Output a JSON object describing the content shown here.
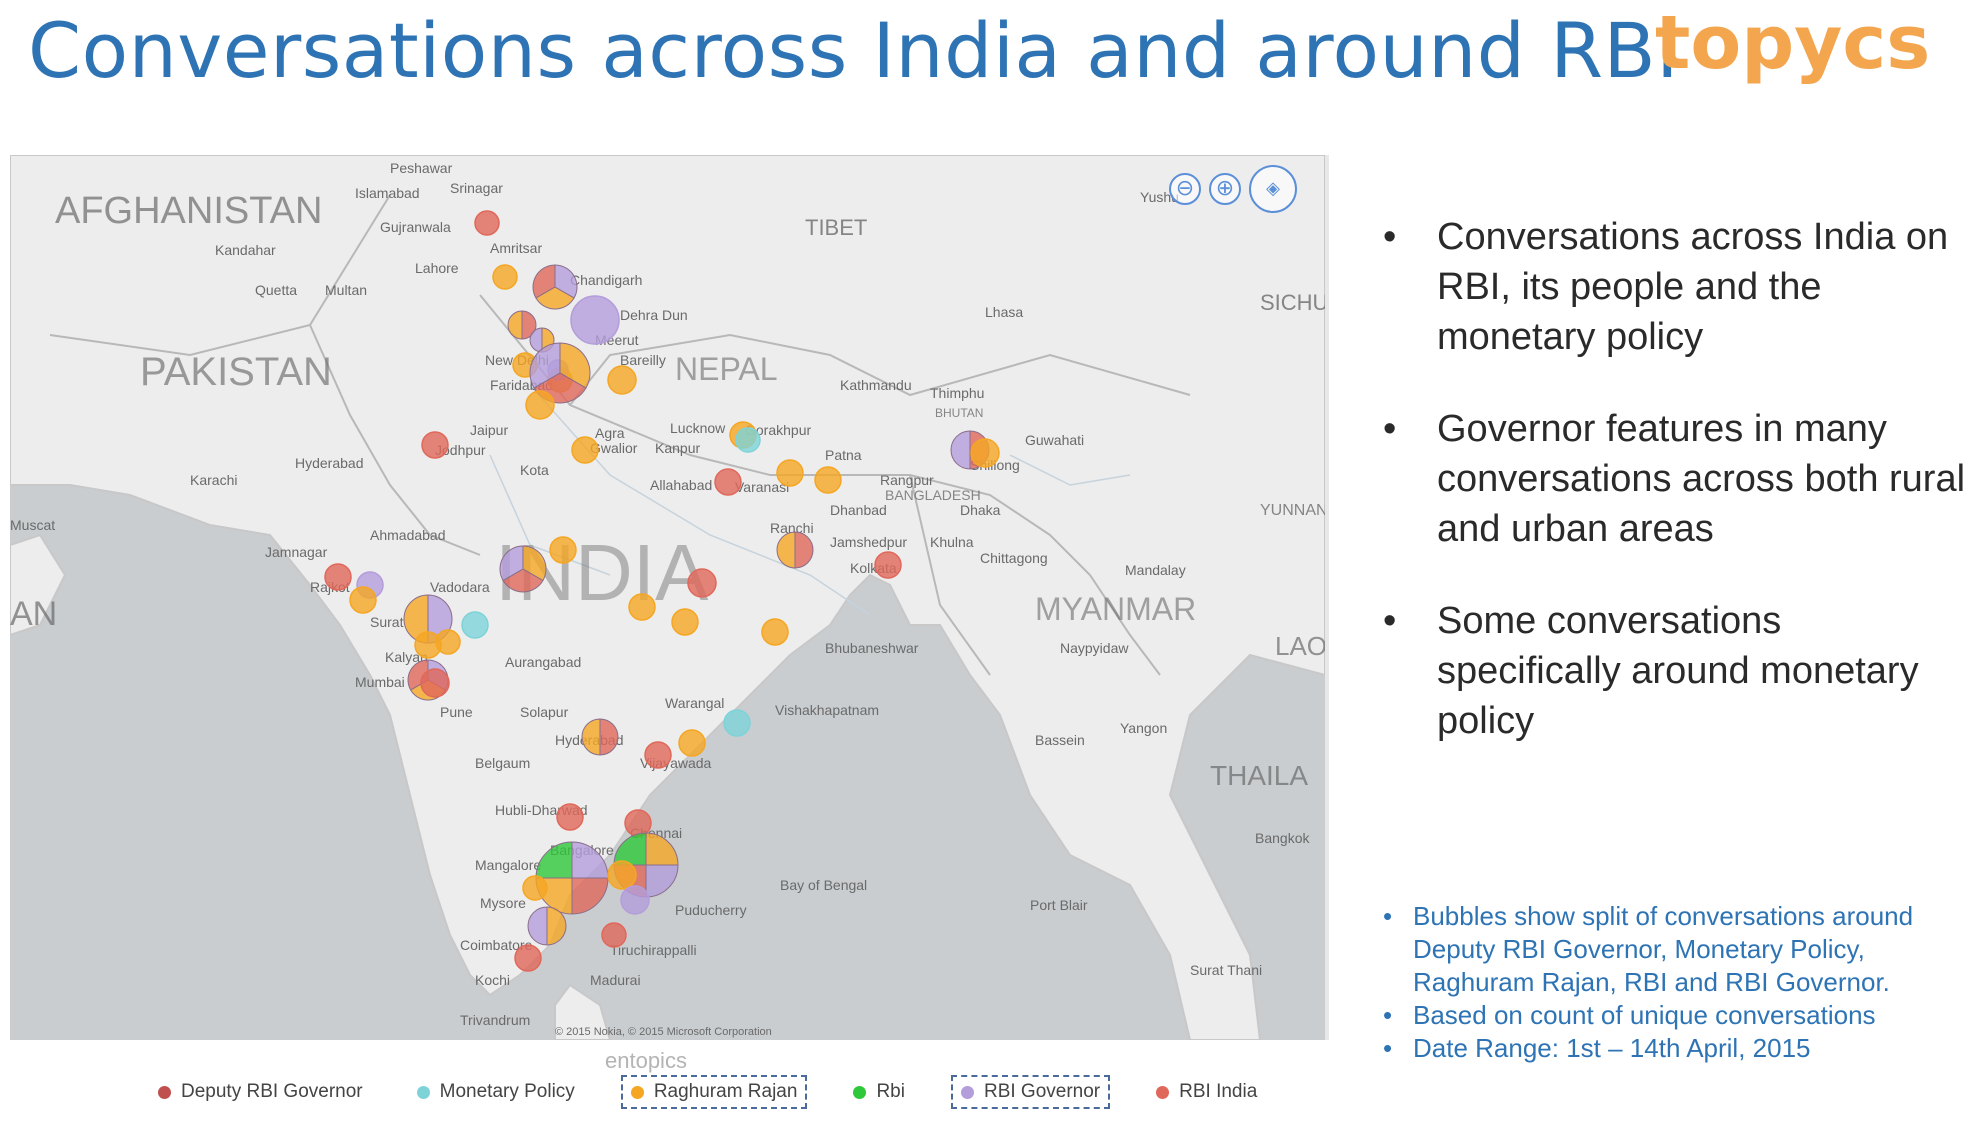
{
  "header": {
    "title": "Conversations across India and around RBI",
    "brand": "topycs"
  },
  "map": {
    "country_labels": [
      "AFGHANISTAN",
      "PAKISTAN",
      "INDIA",
      "NEPAL",
      "TIBET",
      "MYANMAR",
      "BANGLADESH",
      "SICHU",
      "YUNNAN",
      "THAILA",
      "LAO",
      "AN",
      "BHUTAN"
    ],
    "city_labels": [
      "Peshawar",
      "Srinagar",
      "Islamabad",
      "Gujranwala",
      "Kandahar",
      "Quetta",
      "Multan",
      "Lahore",
      "Amritsar",
      "Chandigarh",
      "Dehra Dun",
      "Meerut",
      "New Delhi",
      "Faridabad",
      "Bareilly",
      "Jaipur",
      "Agra",
      "Lucknow",
      "Gorakhpur",
      "Kathmandu",
      "Thimphu",
      "Guwahati",
      "Jodhpur",
      "Hyderabad",
      "Karachi",
      "Gwalior",
      "Kanpur",
      "Patna",
      "Kota",
      "Allahabad",
      "Varanasi",
      "Dhanbad",
      "Dhaka",
      "Ranchi",
      "Jamshedpur",
      "Khulna",
      "Chittagong",
      "Mandalay",
      "Ahmadabad",
      "Jamnagar",
      "Rajkot",
      "Vadodara",
      "Kolkata",
      "Surat",
      "Bhubaneshwar",
      "Naypyidaw",
      "Kalyan",
      "Mumbai",
      "Aurangabad",
      "Pune",
      "Solapur",
      "Warangal",
      "Vishakhapatnam",
      "Yangon",
      "Hyderabad",
      "Vijayawada",
      "Belgaum",
      "Hubli-Dharwad",
      "Chennai",
      "Bangalore",
      "Mangalore",
      "Mysore",
      "Puducherry",
      "Coimbatore",
      "Tiruchirappalli",
      "Kochi",
      "Madurai",
      "Trivandrum",
      "Bassein",
      "Port Blair",
      "Bangkok",
      "Lhasa",
      "Muscat",
      "Bay of Bengal",
      "Shillong",
      "Rangpur",
      "Yushu",
      "Surat Thani"
    ],
    "copyright": "© 2015 Nokia, © 2015 Microsoft Corporation",
    "zoom_out": "⊖",
    "zoom_in": "⊕",
    "pan": "◈"
  },
  "legend": {
    "credit": "entopics",
    "items": [
      {
        "label": "Deputy RBI Governor",
        "color": "#c0504d",
        "selected": false
      },
      {
        "label": "Monetary Policy",
        "color": "#7dd3d8",
        "selected": false
      },
      {
        "label": "Raghuram Rajan",
        "color": "#f5a623",
        "selected": true
      },
      {
        "label": "Rbi",
        "color": "#2ec83a",
        "selected": false
      },
      {
        "label": "RBI Governor",
        "color": "#b39ddb",
        "selected": true
      },
      {
        "label": "RBI India",
        "color": "#e0685a",
        "selected": false
      }
    ]
  },
  "bullets": [
    "Conversations across India on RBI, its people and the monetary policy",
    "Governor features in many conversations across both rural and urban areas",
    "Some conversations specifically around monetary policy"
  ],
  "notes": [
    "Bubbles show split of conversations around Deputy RBI Governor, Monetary Policy, Raghuram Rajan, RBI and RBI Governor.",
    "Based on count of unique conversations",
    "Date Range: 1st – 14th April, 2015"
  ],
  "colors": {
    "title": "#2e74b5",
    "brand": "#f4a64f",
    "water": "#c9cdd0",
    "land": "#ededed"
  }
}
